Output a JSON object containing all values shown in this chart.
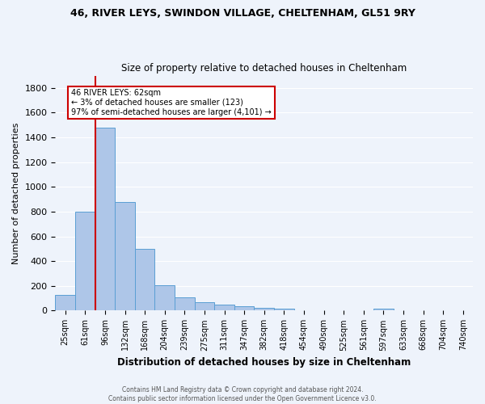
{
  "title": "46, RIVER LEYS, SWINDON VILLAGE, CHELTENHAM, GL51 9RY",
  "subtitle": "Size of property relative to detached houses in Cheltenham",
  "xlabel": "Distribution of detached houses by size in Cheltenham",
  "ylabel": "Number of detached properties",
  "footnote1": "Contains HM Land Registry data © Crown copyright and database right 2024.",
  "footnote2": "Contains public sector information licensed under the Open Government Licence v3.0.",
  "categories": [
    "25sqm",
    "61sqm",
    "96sqm",
    "132sqm",
    "168sqm",
    "204sqm",
    "239sqm",
    "275sqm",
    "311sqm",
    "347sqm",
    "382sqm",
    "418sqm",
    "454sqm",
    "490sqm",
    "525sqm",
    "561sqm",
    "597sqm",
    "633sqm",
    "668sqm",
    "704sqm",
    "740sqm"
  ],
  "values": [
    130,
    800,
    1480,
    880,
    500,
    205,
    105,
    65,
    50,
    33,
    20,
    15,
    0,
    0,
    0,
    0,
    13,
    0,
    0,
    0,
    0
  ],
  "bar_color": "#aec6e8",
  "bar_edge_color": "#5a9fd4",
  "background_color": "#eef3fb",
  "grid_color": "#ffffff",
  "annotation_line1": "46 RIVER LEYS: 62sqm",
  "annotation_line2": "← 3% of detached houses are smaller (123)",
  "annotation_line3": "97% of semi-detached houses are larger (4,101) →",
  "annotation_box_color": "#ffffff",
  "annotation_box_edge": "#cc0000",
  "vline_color": "#cc0000",
  "ylim": [
    0,
    1900
  ],
  "yticks": [
    0,
    200,
    400,
    600,
    800,
    1000,
    1200,
    1400,
    1600,
    1800
  ]
}
